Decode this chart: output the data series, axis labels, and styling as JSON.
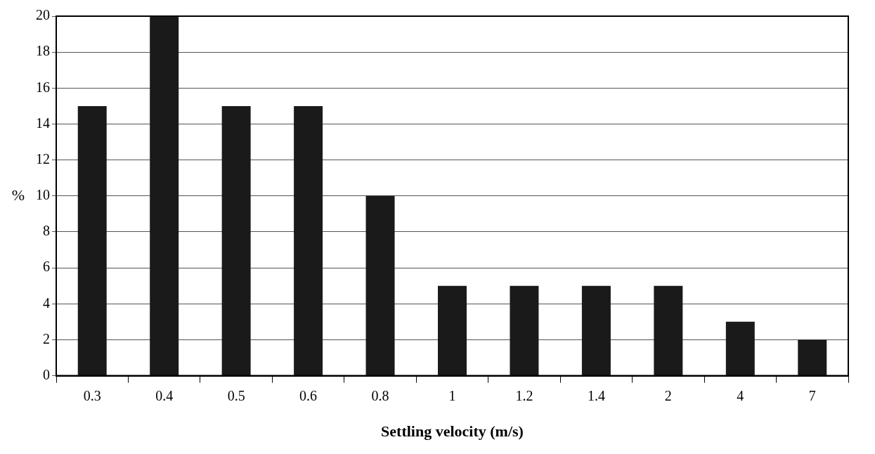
{
  "chart_data": {
    "type": "bar",
    "xlabel": "Settling velocity (m/s)",
    "ylabel": "%",
    "categories": [
      "0.3",
      "0.4",
      "0.5",
      "0.6",
      "0.8",
      "1",
      "1.2",
      "1.4",
      "2",
      "4",
      "7"
    ],
    "values": [
      15,
      20,
      15,
      15,
      10,
      5,
      5,
      5,
      5,
      3,
      2
    ],
    "color": "#1a1a1a",
    "ylim": [
      0,
      20
    ],
    "yticks": [
      0,
      2,
      4,
      6,
      8,
      10,
      12,
      14,
      16,
      18,
      20
    ],
    "grid": "y",
    "legend": false
  }
}
